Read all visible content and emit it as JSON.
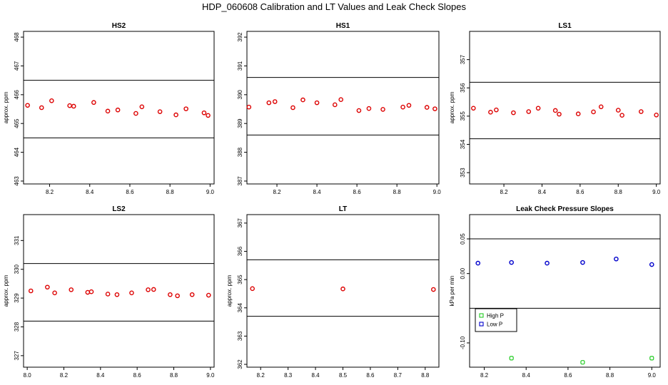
{
  "figure": {
    "title": "HDP_060608  Calibration and LT Values and Leak Check Slopes"
  },
  "chart_data": [
    {
      "id": "hs2",
      "type": "scatter",
      "title": "HS2",
      "xlabel": "",
      "ylabel": "approx. ppm",
      "xlim": [
        8.07,
        9.02
      ],
      "ylim": [
        462.9,
        468.2
      ],
      "xticks": [
        8.2,
        8.4,
        8.6,
        8.8,
        9.0
      ],
      "xtick_labels": [
        "8.2",
        "8.4",
        "8.6",
        "8.8",
        "9.0"
      ],
      "yticks": [
        463,
        464,
        465,
        466,
        467,
        468
      ],
      "ytick_labels": [
        "463",
        "464",
        "465",
        "466",
        "467",
        "468"
      ],
      "hlines": [
        466.5,
        464.5
      ],
      "series": [
        {
          "name": "values",
          "color": "#dd0000",
          "marker": "circle",
          "x": [
            8.09,
            8.16,
            8.21,
            8.3,
            8.32,
            8.42,
            8.49,
            8.54,
            8.63,
            8.66,
            8.75,
            8.83,
            8.88,
            8.97,
            8.99
          ],
          "y": [
            465.63,
            465.55,
            465.79,
            465.62,
            465.6,
            465.73,
            465.43,
            465.47,
            465.35,
            465.58,
            465.41,
            465.3,
            465.51,
            465.37,
            465.28
          ]
        }
      ]
    },
    {
      "id": "hs1",
      "type": "scatter",
      "title": "HS1",
      "xlabel": "",
      "ylabel": "",
      "xlim": [
        8.05,
        9.01
      ],
      "ylim": [
        386.9,
        392.2
      ],
      "xticks": [
        8.2,
        8.4,
        8.6,
        8.8,
        9.0
      ],
      "xtick_labels": [
        "8.2",
        "8.4",
        "8.6",
        "8.8",
        "9.0"
      ],
      "yticks": [
        387,
        388,
        389,
        390,
        391,
        392
      ],
      "ytick_labels": [
        "387",
        "388",
        "389",
        "390",
        "391",
        "392"
      ],
      "hlines": [
        390.6,
        388.6
      ],
      "series": [
        {
          "name": "values",
          "color": "#dd0000",
          "marker": "circle",
          "x": [
            8.06,
            8.16,
            8.19,
            8.28,
            8.33,
            8.4,
            8.49,
            8.52,
            8.61,
            8.66,
            8.73,
            8.83,
            8.86,
            8.95,
            8.99
          ],
          "y": [
            389.57,
            389.72,
            389.76,
            389.55,
            389.82,
            389.72,
            389.65,
            389.83,
            389.45,
            389.52,
            389.49,
            389.57,
            389.63,
            389.56,
            389.51
          ]
        }
      ]
    },
    {
      "id": "ls1",
      "type": "scatter",
      "title": "LS1",
      "xlabel": "",
      "ylabel": "approx. ppm",
      "xlim": [
        8.02,
        9.02
      ],
      "ylim": [
        352.6,
        358.0
      ],
      "xticks": [
        8.2,
        8.4,
        8.6,
        8.8,
        9.0
      ],
      "xtick_labels": [
        "8.2",
        "8.4",
        "8.6",
        "8.8",
        "9.0"
      ],
      "yticks": [
        353,
        354,
        355,
        356,
        357
      ],
      "ytick_labels": [
        "353",
        "354",
        "355",
        "356",
        "357"
      ],
      "hlines": [
        356.2,
        354.2
      ],
      "series": [
        {
          "name": "values",
          "color": "#dd0000",
          "marker": "circle",
          "x": [
            8.04,
            8.13,
            8.16,
            8.25,
            8.33,
            8.38,
            8.47,
            8.49,
            8.59,
            8.67,
            8.71,
            8.8,
            8.82,
            8.92,
            9.0
          ],
          "y": [
            355.28,
            355.14,
            355.22,
            355.12,
            355.16,
            355.28,
            355.2,
            355.07,
            355.08,
            355.15,
            355.33,
            355.21,
            355.03,
            355.16,
            355.04
          ]
        }
      ]
    },
    {
      "id": "ls2",
      "type": "scatter",
      "title": "LS2",
      "xlabel": "",
      "ylabel": "approx. ppm",
      "xlim": [
        7.98,
        9.02
      ],
      "ylim": [
        326.6,
        331.9
      ],
      "xticks": [
        8.0,
        8.2,
        8.4,
        8.6,
        8.8,
        9.0
      ],
      "xtick_labels": [
        "8.0",
        "8.2",
        "8.4",
        "8.6",
        "8.8",
        "9.0"
      ],
      "yticks": [
        327,
        328,
        329,
        330,
        331
      ],
      "ytick_labels": [
        "327",
        "328",
        "329",
        "330",
        "331"
      ],
      "hlines": [
        330.2,
        328.2
      ],
      "series": [
        {
          "name": "values",
          "color": "#dd0000",
          "marker": "circle",
          "x": [
            8.02,
            8.11,
            8.15,
            8.24,
            8.33,
            8.35,
            8.44,
            8.49,
            8.57,
            8.66,
            8.69,
            8.78,
            8.82,
            8.9,
            8.99
          ],
          "y": [
            329.25,
            329.38,
            329.18,
            329.29,
            329.2,
            329.22,
            329.14,
            329.12,
            329.18,
            329.29,
            329.3,
            329.12,
            329.08,
            329.12,
            329.1
          ]
        }
      ]
    },
    {
      "id": "lt",
      "type": "scatter",
      "title": "LT",
      "xlabel": "",
      "ylabel": "approx. ppm",
      "xlim": [
        8.15,
        8.85
      ],
      "ylim": [
        361.9,
        367.3
      ],
      "xticks": [
        8.2,
        8.3,
        8.4,
        8.5,
        8.6,
        8.7,
        8.8
      ],
      "xtick_labels": [
        "8.2",
        "8.3",
        "8.4",
        "8.5",
        "8.6",
        "8.7",
        "8.8"
      ],
      "yticks": [
        362,
        363,
        364,
        365,
        366,
        367
      ],
      "ytick_labels": [
        "362",
        "363",
        "364",
        "365",
        "366",
        "367"
      ],
      "hlines": [
        365.7,
        363.7
      ],
      "series": [
        {
          "name": "values",
          "color": "#dd0000",
          "marker": "circle",
          "x": [
            8.17,
            8.5,
            8.83
          ],
          "y": [
            364.68,
            364.67,
            364.65
          ]
        }
      ]
    },
    {
      "id": "leak",
      "type": "scatter",
      "title": "Leak Check Pressure Slopes",
      "xlabel": "",
      "ylabel": "kPa per min",
      "xlim": [
        8.13,
        9.04
      ],
      "ylim": [
        -0.135,
        0.085
      ],
      "xticks": [
        8.2,
        8.4,
        8.6,
        8.8,
        9.0
      ],
      "xtick_labels": [
        "8.2",
        "8.4",
        "8.6",
        "8.8",
        "9.0"
      ],
      "yticks": [
        -0.1,
        0.0,
        0.05
      ],
      "ytick_labels": [
        "-0.10",
        "0.00",
        "0.05"
      ],
      "hlines": [
        0.05,
        -0.05
      ],
      "legend": {
        "placement": "middle-left",
        "entries": [
          {
            "label": "High P",
            "color": "#22cc22"
          },
          {
            "label": "Low P",
            "color": "#0000cc"
          }
        ]
      },
      "series": [
        {
          "name": "High P",
          "color": "#22cc22",
          "marker": "square-outline",
          "x": [
            8.33,
            8.67,
            9.0
          ],
          "y": [
            -0.122,
            -0.128,
            -0.122
          ]
        },
        {
          "name": "Low P",
          "color": "#0000cc",
          "marker": "circle",
          "x": [
            8.17,
            8.33,
            8.5,
            8.67,
            8.83,
            9.0
          ],
          "y": [
            0.015,
            0.016,
            0.015,
            0.016,
            0.021,
            0.013
          ]
        }
      ]
    }
  ]
}
